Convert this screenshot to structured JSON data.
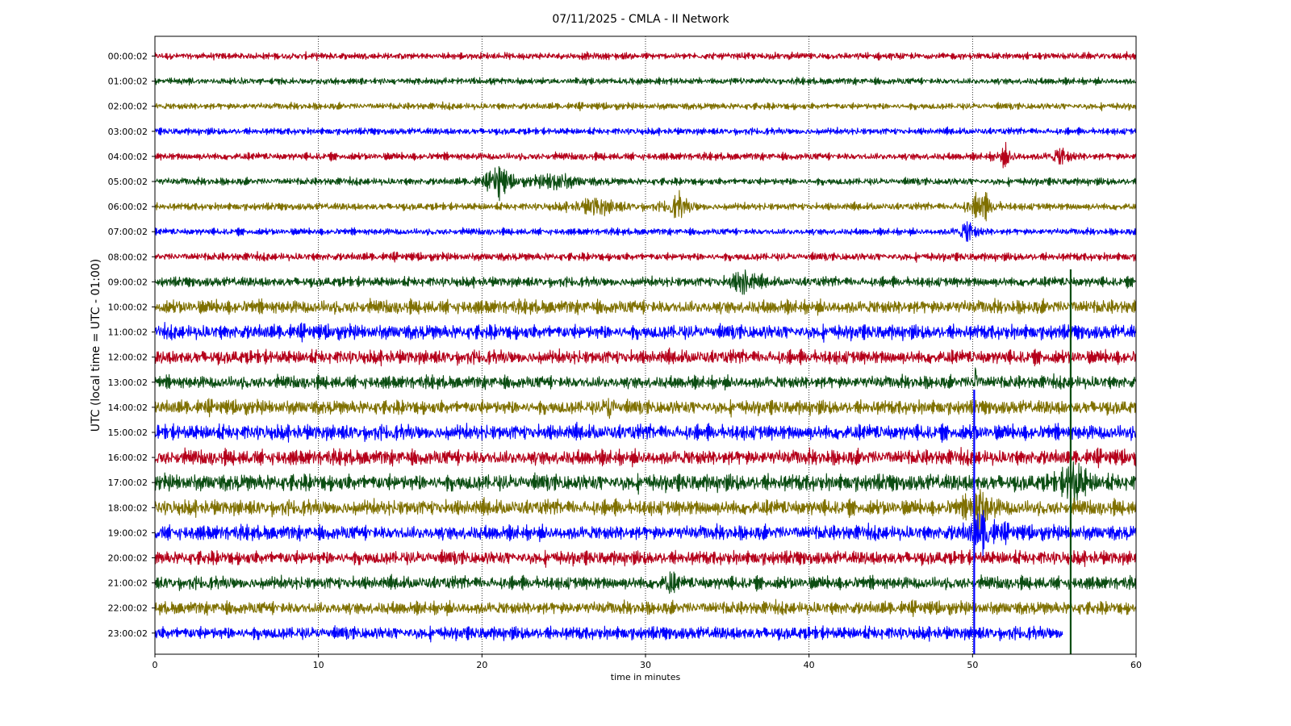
{
  "chart_data": {
    "type": "line",
    "title": "07/11/2025 - CMLA - II Network",
    "xlabel": "time in minutes",
    "ylabel": "UTC (local time = UTC - 01:00)",
    "xlim": [
      0,
      60
    ],
    "x_ticks": [
      "0",
      "10",
      "20",
      "30",
      "40",
      "50",
      "60"
    ],
    "grid": "vertical dotted lines at each x tick",
    "trace_colors": [
      "#b5001a",
      "#0b4d12",
      "#7f7000",
      "#0000ff"
    ],
    "rows": [
      {
        "label": "00:00:02",
        "amp": 0.22
      },
      {
        "label": "01:00:02",
        "amp": 0.22
      },
      {
        "label": "02:00:02",
        "amp": 0.22
      },
      {
        "label": "03:00:02",
        "amp": 0.22
      },
      {
        "label": "04:00:02",
        "amp": 0.24
      },
      {
        "label": "05:00:02",
        "amp": 0.24
      },
      {
        "label": "06:00:02",
        "amp": 0.24
      },
      {
        "label": "07:00:02",
        "amp": 0.22
      },
      {
        "label": "08:00:02",
        "amp": 0.26
      },
      {
        "label": "09:00:02",
        "amp": 0.32
      },
      {
        "label": "10:00:02",
        "amp": 0.45
      },
      {
        "label": "11:00:02",
        "amp": 0.48
      },
      {
        "label": "12:00:02",
        "amp": 0.45
      },
      {
        "label": "13:00:02",
        "amp": 0.42
      },
      {
        "label": "14:00:02",
        "amp": 0.46
      },
      {
        "label": "15:00:02",
        "amp": 0.5
      },
      {
        "label": "16:00:02",
        "amp": 0.5
      },
      {
        "label": "17:00:02",
        "amp": 0.55
      },
      {
        "label": "18:00:02",
        "amp": 0.5
      },
      {
        "label": "19:00:02",
        "amp": 0.48
      },
      {
        "label": "20:00:02",
        "amp": 0.45
      },
      {
        "label": "21:00:02",
        "amp": 0.42
      },
      {
        "label": "22:00:02",
        "amp": 0.42
      },
      {
        "label": "23:00:02",
        "amp": 0.42,
        "end_minute": 55.5
      }
    ],
    "events": [
      {
        "row": 4,
        "minute": 52,
        "amp": 0.5,
        "width": 0.6
      },
      {
        "row": 4,
        "minute": 55.4,
        "amp": 0.55,
        "width": 0.6
      },
      {
        "row": 5,
        "minute": 21,
        "amp": 0.9,
        "width": 0.8
      },
      {
        "row": 5,
        "minute": 24.5,
        "amp": 0.5,
        "width": 1.5
      },
      {
        "row": 6,
        "minute": 27,
        "amp": 0.5,
        "width": 1.5
      },
      {
        "row": 6,
        "minute": 32,
        "amp": 0.7,
        "width": 0.8
      },
      {
        "row": 6,
        "minute": 50.5,
        "amp": 0.9,
        "width": 0.8
      },
      {
        "row": 7,
        "minute": 49.7,
        "amp": 0.7,
        "width": 0.6
      },
      {
        "row": 9,
        "minute": 36,
        "amp": 0.8,
        "width": 0.8
      },
      {
        "row": 13,
        "minute": 50.2,
        "amp": 1.6,
        "width": 0.1
      },
      {
        "row": 14,
        "minute": 27.8,
        "amp": 0.7,
        "width": 0.3
      },
      {
        "row": 17,
        "minute": 56.2,
        "amp": 1.3,
        "width": 0.8
      },
      {
        "row": 18,
        "minute": 50.4,
        "amp": 1.2,
        "width": 0.9
      },
      {
        "row": 19,
        "minute": 50.6,
        "amp": 1.0,
        "width": 1.0
      },
      {
        "row": 21,
        "minute": 31.5,
        "amp": 0.6,
        "width": 0.4
      }
    ],
    "spikes": [
      {
        "minute": 50.1,
        "row_from": 13.3,
        "row_to": 24.0
      },
      {
        "minute": 56.0,
        "row_from": 8.5,
        "row_to": 24.0
      }
    ]
  }
}
